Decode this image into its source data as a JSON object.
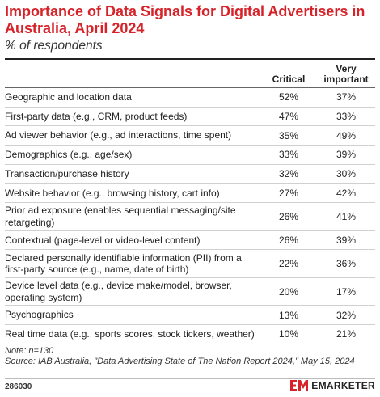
{
  "header": {
    "title": "Importance of Data Signals for Digital Advertisers in Australia, April 2024",
    "subtitle": "% of respondents"
  },
  "chart_data": {
    "type": "table",
    "columns": [
      "Critical",
      "Very important"
    ],
    "rows": [
      {
        "label": "Geographic and location data",
        "critical": "52%",
        "very_important": "37%"
      },
      {
        "label": "First-party data (e.g., CRM, product feeds)",
        "critical": "47%",
        "very_important": "33%"
      },
      {
        "label": "Ad viewer behavior (e.g., ad interactions, time spent)",
        "critical": "35%",
        "very_important": "49%"
      },
      {
        "label": "Demographics (e.g., age/sex)",
        "critical": "33%",
        "very_important": "39%"
      },
      {
        "label": "Transaction/purchase history",
        "critical": "32%",
        "very_important": "30%"
      },
      {
        "label": "Website behavior (e.g., browsing history, cart info)",
        "critical": "27%",
        "very_important": "42%"
      },
      {
        "label": "Prior ad exposure (enables sequential messaging/site retargeting)",
        "critical": "26%",
        "very_important": "41%"
      },
      {
        "label": "Contextual (page-level or video-level content)",
        "critical": "26%",
        "very_important": "39%"
      },
      {
        "label": "Declared personally identifiable information (PII) from a first-party source (e.g., name, date of birth)",
        "critical": "22%",
        "very_important": "36%"
      },
      {
        "label": "Device level data (e.g., device make/model, browser, operating system)",
        "critical": "20%",
        "very_important": "17%"
      },
      {
        "label": "Psychographics",
        "critical": "13%",
        "very_important": "32%"
      },
      {
        "label": "Real time data (e.g., sports scores, stock tickers, weather)",
        "critical": "10%",
        "very_important": "21%"
      }
    ]
  },
  "notes": {
    "note": "Note: n=130",
    "source": "Source: IAB Australia, \"Data Advertising State of The Nation Report 2024,\" May 15, 2024"
  },
  "footer": {
    "chart_id": "286030",
    "brand": "EMARKETER",
    "brand_color": "#d6232a"
  }
}
